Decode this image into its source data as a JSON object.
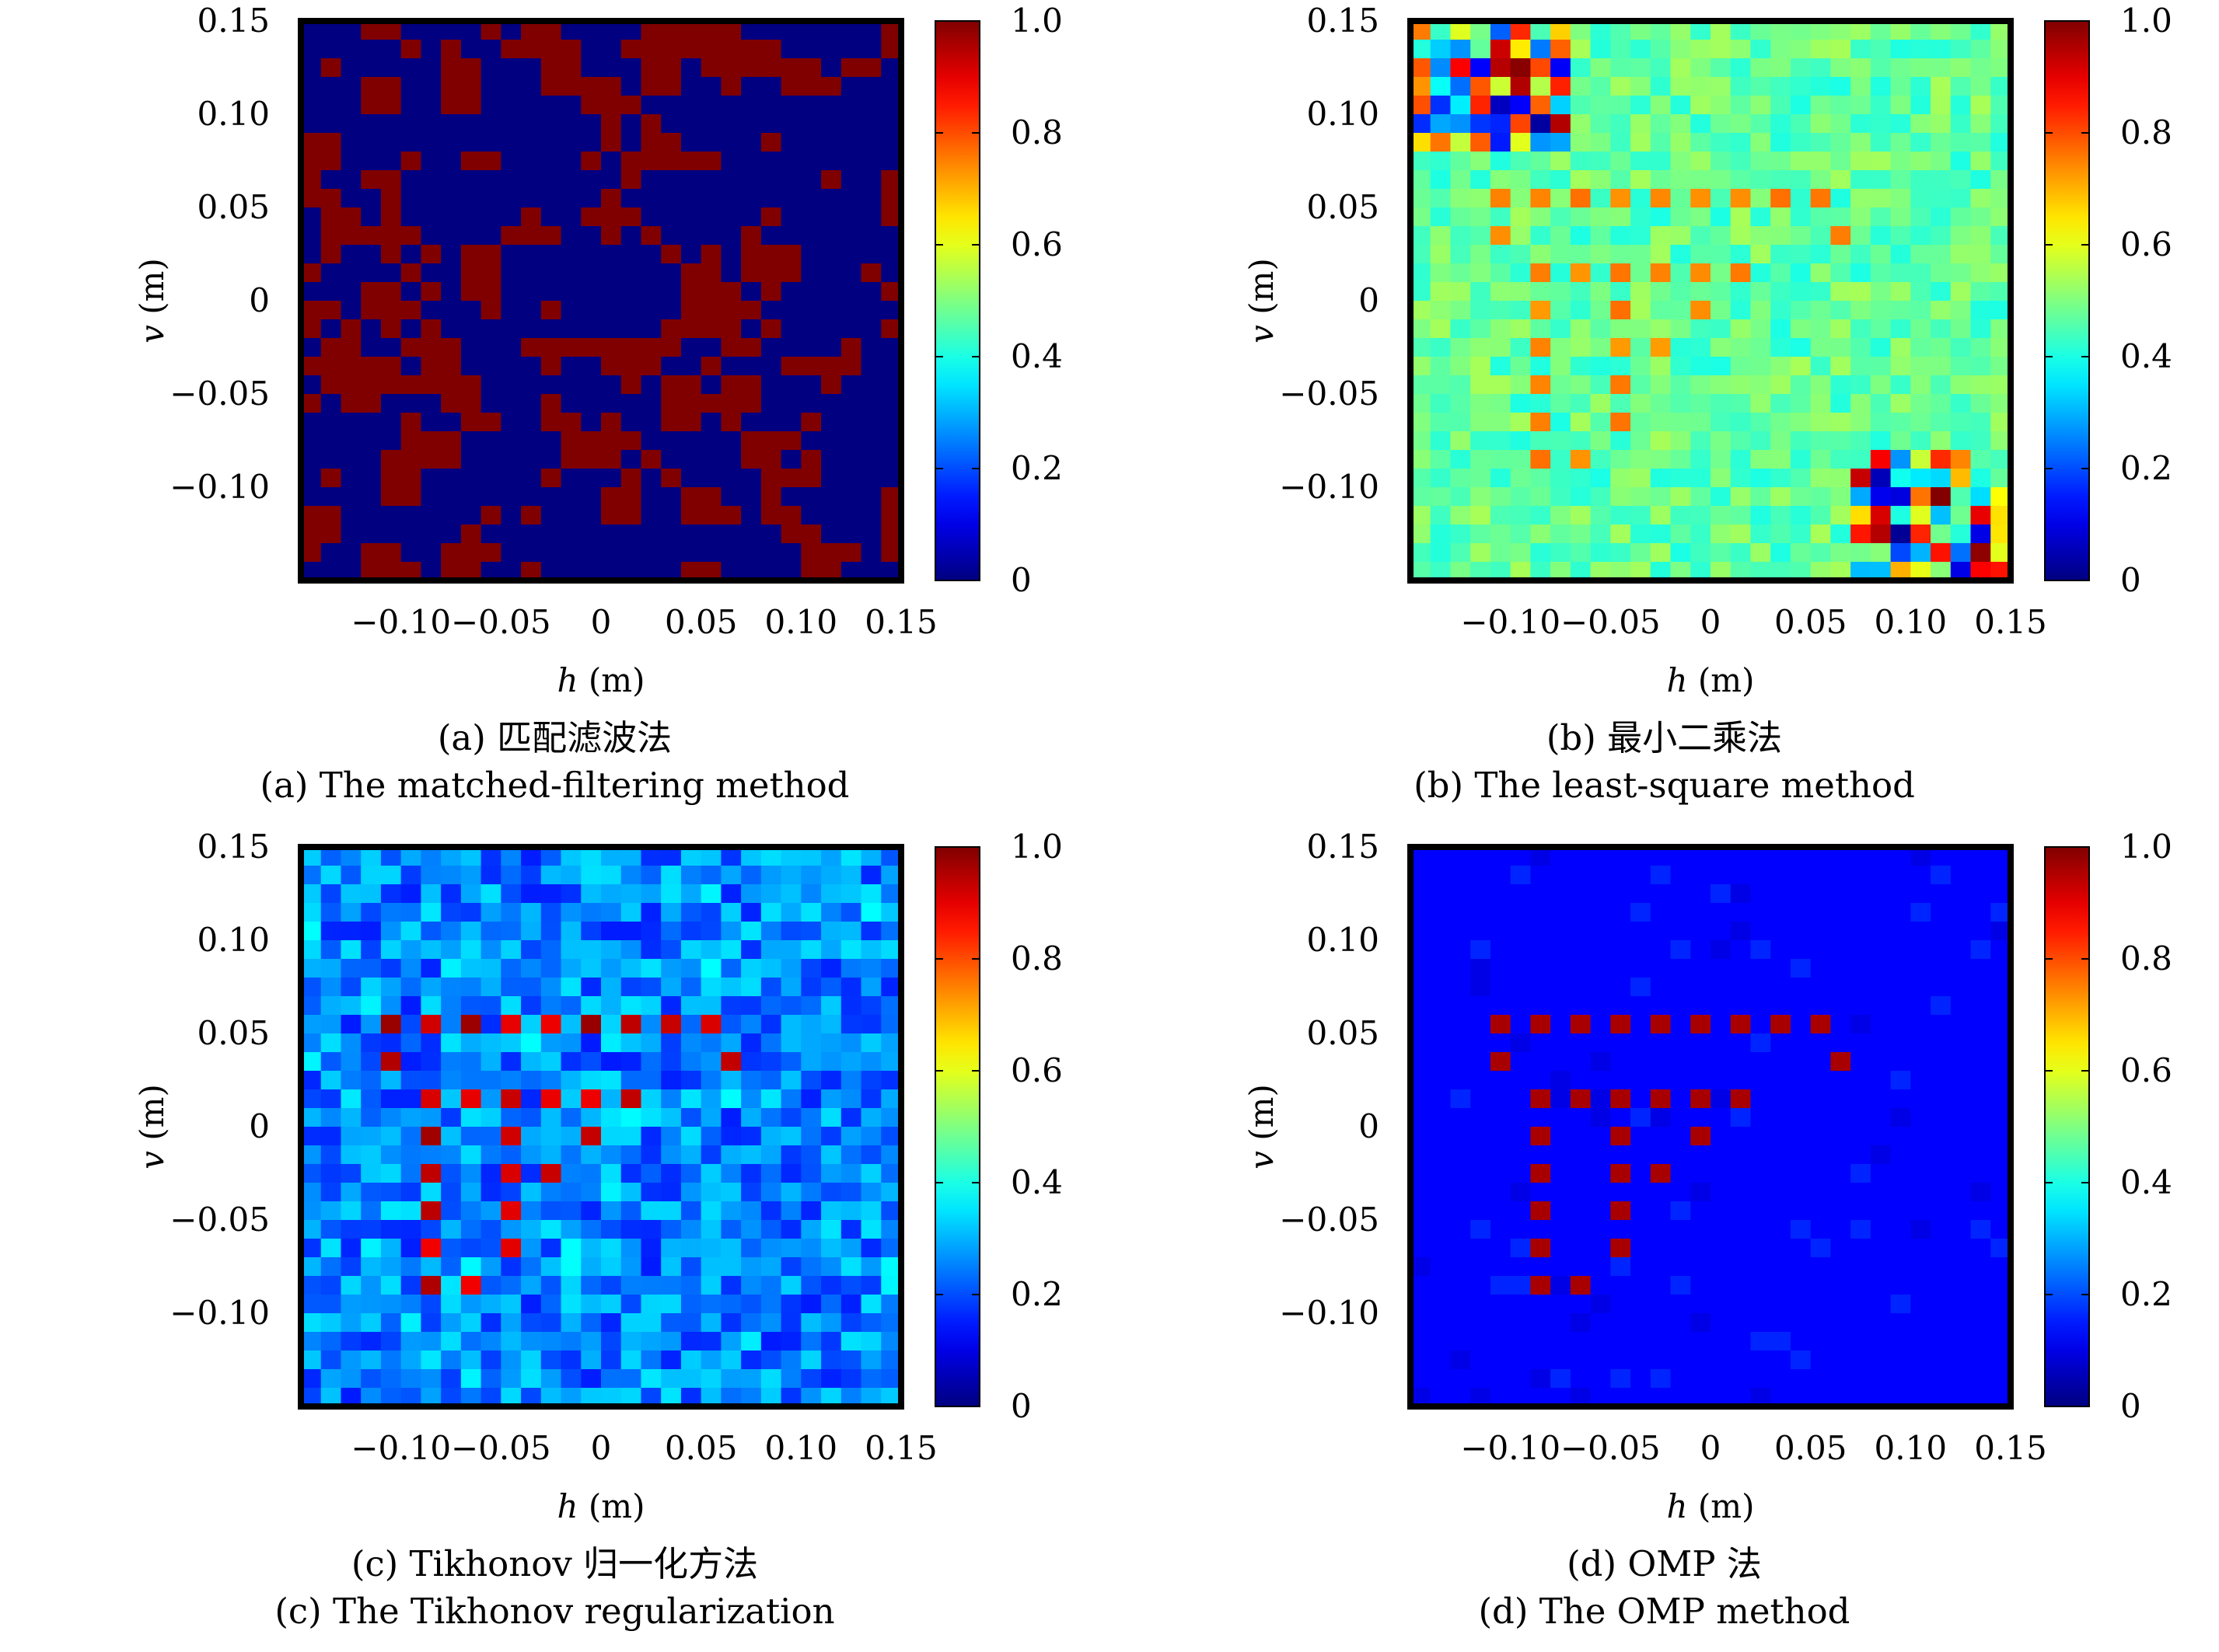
{
  "chart_data": [
    {
      "type": "heatmap",
      "id": "a",
      "grid_size": 30,
      "pattern": "matched",
      "caption_cn": "(a) 匹配滤波法",
      "caption_en": "(a) The matched-filtering method",
      "xlabel_var": "h",
      "xlabel_unit": " (m)",
      "ylabel_var": "v",
      "ylabel_unit": " (m)",
      "xlim": [
        -0.15,
        0.15
      ],
      "ylim": [
        -0.15,
        0.15
      ],
      "xticks": [
        -0.1,
        -0.05,
        0,
        0.05,
        0.1,
        0.15
      ],
      "xtick_labels": [
        "−0.10",
        "−0.05",
        "0",
        "0.05",
        "0.10",
        "0.15"
      ],
      "yticks": [
        0.15,
        0.1,
        0.05,
        0,
        -0.05,
        -0.1
      ],
      "ytick_labels": [
        "0.15",
        "0.10",
        "0.05",
        "0",
        "−0.05",
        "−0.10"
      ],
      "colorbar_ticks": [
        1.0,
        0.8,
        0.6,
        0.4,
        0.2,
        0
      ],
      "colorbar_labels": [
        "1.0",
        "0.8",
        "0.6",
        "0.4",
        "0.2",
        "0"
      ],
      "clim": [
        0,
        1
      ]
    },
    {
      "type": "heatmap",
      "id": "b",
      "grid_size": 30,
      "pattern": "leastsq",
      "caption_cn": "(b) 最小二乘法",
      "caption_en": "(b) The least-square method",
      "xlabel_var": "h",
      "xlabel_unit": " (m)",
      "ylabel_var": "v",
      "ylabel_unit": " (m)",
      "xlim": [
        -0.15,
        0.15
      ],
      "ylim": [
        -0.15,
        0.15
      ],
      "xticks": [
        -0.1,
        -0.05,
        0,
        0.05,
        0.1,
        0.15
      ],
      "xtick_labels": [
        "−0.10",
        "−0.05",
        "0",
        "0.05",
        "0.10",
        "0.15"
      ],
      "yticks": [
        0.15,
        0.1,
        0.05,
        0,
        -0.05,
        -0.1
      ],
      "ytick_labels": [
        "0.15",
        "0.10",
        "0.05",
        "0",
        "−0.05",
        "−0.10"
      ],
      "colorbar_ticks": [
        1.0,
        0.8,
        0.6,
        0.4,
        0.2,
        0
      ],
      "colorbar_labels": [
        "1.0",
        "0.8",
        "0.6",
        "0.4",
        "0.2",
        "0"
      ],
      "clim": [
        0,
        1
      ]
    },
    {
      "type": "heatmap",
      "id": "c",
      "grid_size": 30,
      "pattern": "tikhonov",
      "caption_cn": "(c) Tikhonov 归一化方法",
      "caption_en": "(c) The Tikhonov regularization",
      "xlabel_var": "h",
      "xlabel_unit": " (m)",
      "ylabel_var": "v",
      "ylabel_unit": " (m)",
      "xlim": [
        -0.15,
        0.15
      ],
      "ylim": [
        -0.15,
        0.15
      ],
      "xticks": [
        -0.1,
        -0.05,
        0,
        0.05,
        0.1,
        0.15
      ],
      "xtick_labels": [
        "−0.10",
        "−0.05",
        "0",
        "0.05",
        "0.10",
        "0.15"
      ],
      "yticks": [
        0.15,
        0.1,
        0.05,
        0,
        -0.05,
        -0.1
      ],
      "ytick_labels": [
        "0.15",
        "0.10",
        "0.05",
        "0",
        "−0.05",
        "−0.10"
      ],
      "colorbar_ticks": [
        1.0,
        0.8,
        0.6,
        0.4,
        0.2,
        0
      ],
      "colorbar_labels": [
        "1.0",
        "0.8",
        "0.6",
        "0.4",
        "0.2",
        "0"
      ],
      "clim": [
        0,
        1
      ]
    },
    {
      "type": "heatmap",
      "id": "d",
      "grid_size": 30,
      "pattern": "omp",
      "caption_cn": "(d) OMP 法",
      "caption_en": "(d) The OMP method",
      "xlabel_var": "h",
      "xlabel_unit": " (m)",
      "ylabel_var": "v",
      "ylabel_unit": " (m)",
      "xlim": [
        -0.15,
        0.15
      ],
      "ylim": [
        -0.15,
        0.15
      ],
      "xticks": [
        -0.1,
        -0.05,
        0,
        0.05,
        0.1,
        0.15
      ],
      "xtick_labels": [
        "−0.10",
        "−0.05",
        "0",
        "0.05",
        "0.10",
        "0.15"
      ],
      "yticks": [
        0.15,
        0.1,
        0.05,
        0,
        -0.05,
        -0.1
      ],
      "ytick_labels": [
        "0.15",
        "0.10",
        "0.05",
        "0",
        "−0.05",
        "−0.10"
      ],
      "colorbar_ticks": [
        1.0,
        0.8,
        0.6,
        0.4,
        0.2,
        0
      ],
      "colorbar_labels": [
        "1.0",
        "0.8",
        "0.6",
        "0.4",
        "0.2",
        "0"
      ],
      "clim": [
        0,
        1
      ]
    }
  ]
}
